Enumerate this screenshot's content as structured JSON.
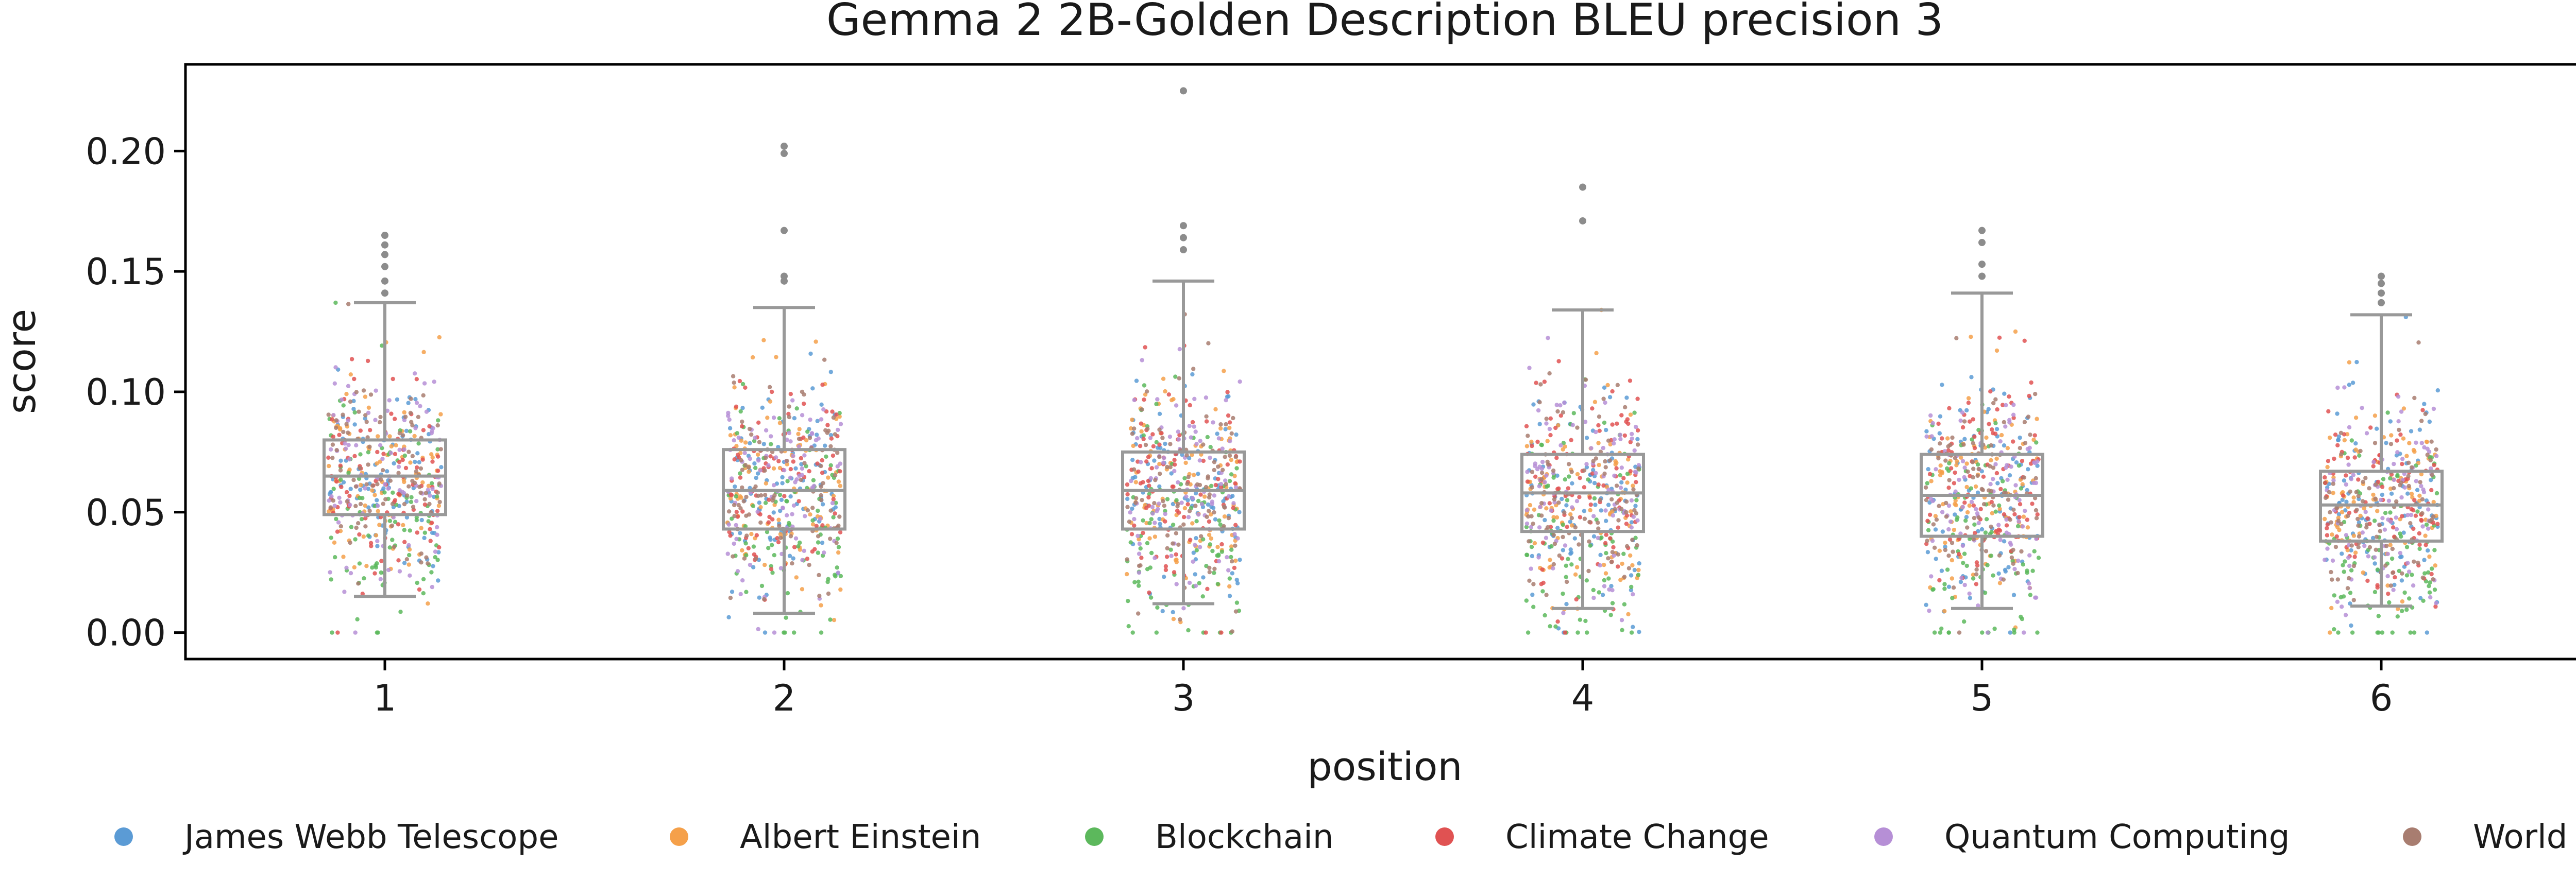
{
  "chart_data": {
    "type": "box+strip",
    "title": "Gemma 2 2B-Golden Description BLEU precision 3",
    "xlabel": "position",
    "ylabel": "score",
    "categories": [
      "1",
      "2",
      "3",
      "4",
      "5",
      "6"
    ],
    "ylim": [
      -0.011,
      0.236
    ],
    "yticks": [
      0.0,
      0.05,
      0.1,
      0.15,
      0.2
    ],
    "ytick_labels": [
      "0.00",
      "0.05",
      "0.10",
      "0.15",
      "0.20"
    ],
    "grid": false,
    "legend_position": "bottom",
    "box_stats": [
      {
        "position": "1",
        "whisker_low": 0.015,
        "q1": 0.049,
        "median": 0.065,
        "q3": 0.08,
        "whisker_high": 0.137
      },
      {
        "position": "2",
        "whisker_low": 0.008,
        "q1": 0.043,
        "median": 0.059,
        "q3": 0.076,
        "whisker_high": 0.135
      },
      {
        "position": "3",
        "whisker_low": 0.012,
        "q1": 0.043,
        "median": 0.059,
        "q3": 0.075,
        "whisker_high": 0.146
      },
      {
        "position": "4",
        "whisker_low": 0.01,
        "q1": 0.042,
        "median": 0.058,
        "q3": 0.074,
        "whisker_high": 0.134
      },
      {
        "position": "5",
        "whisker_low": 0.01,
        "q1": 0.04,
        "median": 0.057,
        "q3": 0.074,
        "whisker_high": 0.141
      },
      {
        "position": "6",
        "whisker_low": 0.011,
        "q1": 0.038,
        "median": 0.053,
        "q3": 0.067,
        "whisker_high": 0.132
      }
    ],
    "outliers": [
      {
        "position": "1",
        "values": [
          0.141,
          0.146,
          0.152,
          0.157,
          0.161,
          0.165
        ]
      },
      {
        "position": "2",
        "values": [
          0.146,
          0.148,
          0.167,
          0.199,
          0.202
        ]
      },
      {
        "position": "3",
        "values": [
          0.159,
          0.164,
          0.169,
          0.225
        ]
      },
      {
        "position": "4",
        "values": [
          0.171,
          0.185
        ]
      },
      {
        "position": "5",
        "values": [
          0.148,
          0.153,
          0.162,
          0.167
        ]
      },
      {
        "position": "6",
        "values": [
          0.137,
          0.141,
          0.145,
          0.148
        ]
      }
    ],
    "series": [
      {
        "name": "James Webb Telescope",
        "color": "#5b9bd5"
      },
      {
        "name": "Albert Einstein",
        "color": "#f5a04a"
      },
      {
        "name": "Blockchain",
        "color": "#5cb85c"
      },
      {
        "name": "Climate Change",
        "color": "#e05252"
      },
      {
        "name": "Quantum Computing",
        "color": "#b68fd6"
      },
      {
        "name": "World War II",
        "color": "#a87d70"
      }
    ],
    "box_color": "#999999"
  }
}
